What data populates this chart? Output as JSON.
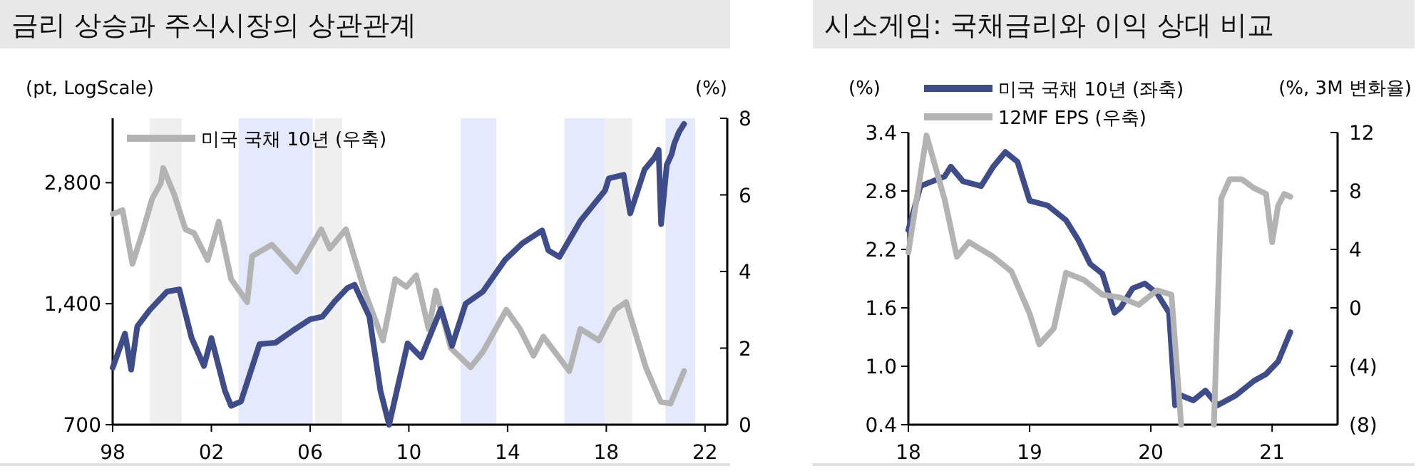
{
  "chart_data": [
    {
      "type": "line",
      "title": "금리 상승과 주식시장의 상관관계",
      "ylabel": "(pt, LogScale)",
      "y2label": "(%)",
      "log": "y",
      "legend": "top left",
      "xlim": [
        1998,
        2022.9
      ],
      "xticks": [
        {
          "value": 1998,
          "label": "98"
        },
        {
          "value": 2002,
          "label": "02"
        },
        {
          "value": 2006,
          "label": "06"
        },
        {
          "value": 2010,
          "label": "10"
        },
        {
          "value": 2014,
          "label": "14"
        },
        {
          "value": 2018,
          "label": "18"
        },
        {
          "value": 2022,
          "label": "22"
        }
      ],
      "ylim": [
        700,
        4050
      ],
      "yticks": [
        {
          "value": 700,
          "label": "700"
        },
        {
          "value": 1400,
          "label": "1,400"
        },
        {
          "value": 2800,
          "label": "2,800"
        }
      ],
      "y2lim": [
        0,
        8
      ],
      "y2ticks": [
        0,
        2,
        4,
        6,
        8
      ],
      "bands": [
        {
          "axis": "x",
          "from": 1999.5,
          "to": 2000.8,
          "color": "#efefef"
        },
        {
          "axis": "x",
          "from": 2003.1,
          "to": 2006.1,
          "color": "#e4e9fb"
        },
        {
          "axis": "x",
          "from": 2006.2,
          "to": 2007.3,
          "color": "#efefef"
        },
        {
          "axis": "x",
          "from": 2012.1,
          "to": 2013.55,
          "color": "#e4e9fb"
        },
        {
          "axis": "x",
          "from": 2016.3,
          "to": 2017.95,
          "color": "#e4e9fb"
        },
        {
          "axis": "x",
          "from": 2017.95,
          "to": 2019.05,
          "color": "#efefef"
        },
        {
          "axis": "x",
          "from": 2020.4,
          "to": 2021.6,
          "color": "#e4e9fb"
        }
      ],
      "series": [
        {
          "color": "#b3b3b3",
          "axis": "y2",
          "name": "미국 국채 10년 (우축)",
          "x": [
            1998,
            1998.4,
            1998.8,
            1999.2,
            1999.6,
            1999.95,
            2000.05,
            2000.5,
            2000.95,
            2001.3,
            2001.85,
            2002.3,
            2002.8,
            2003.45,
            2003.65,
            2004.45,
            2005.45,
            2006.45,
            2006.8,
            2007.45,
            2008.2,
            2008.95,
            2009.45,
            2009.9,
            2010.3,
            2010.8,
            2011.1,
            2011.7,
            2012.5,
            2013.0,
            2013.95,
            2014.5,
            2015.05,
            2015.45,
            2016.5,
            2016.95,
            2017.7,
            2018.35,
            2018.8,
            2019.6,
            2020.2,
            2020.6,
            2021.15
          ],
          "values": [
            5.5,
            5.6,
            4.2,
            5.0,
            5.9,
            6.3,
            6.7,
            6.0,
            5.1,
            5.0,
            4.3,
            5.3,
            3.8,
            3.2,
            4.4,
            4.7,
            4.0,
            5.1,
            4.6,
            5.1,
            3.5,
            2.2,
            3.8,
            3.6,
            3.9,
            2.5,
            3.5,
            2.0,
            1.5,
            1.9,
            3.0,
            2.5,
            1.8,
            2.3,
            1.4,
            2.5,
            2.2,
            3.0,
            3.2,
            1.5,
            0.6,
            0.55,
            1.4
          ]
        },
        {
          "color": "#3f4c8a",
          "x": [
            1998,
            1998.5,
            1998.75,
            1999.0,
            1999.5,
            2000.2,
            2000.7,
            2001.2,
            2001.7,
            2002.0,
            2002.55,
            2002.8,
            2003.2,
            2003.95,
            2004.6,
            2005.3,
            2006.0,
            2006.5,
            2007.0,
            2007.5,
            2007.8,
            2008.4,
            2008.85,
            2009.2,
            2009.95,
            2010.5,
            2011.3,
            2011.75,
            2012.3,
            2013.0,
            2013.9,
            2014.6,
            2015.4,
            2015.65,
            2016.1,
            2016.95,
            2017.95,
            2018.1,
            2018.7,
            2018.97,
            2019.55,
            2019.95,
            2020.12,
            2020.22,
            2020.45,
            2020.65,
            2020.75,
            2020.95,
            2021.15
          ],
          "values": [
            970,
            1180,
            960,
            1230,
            1350,
            1500,
            1520,
            1150,
            980,
            1150,
            850,
            780,
            800,
            1110,
            1120,
            1200,
            1280,
            1300,
            1420,
            1530,
            1560,
            1300,
            850,
            700,
            1115,
            1030,
            1360,
            1100,
            1400,
            1500,
            1800,
            1980,
            2130,
            1900,
            1830,
            2250,
            2680,
            2870,
            2930,
            2350,
            3020,
            3230,
            3380,
            2210,
            3100,
            3300,
            3500,
            3750,
            3920
          ]
        }
      ]
    },
    {
      "type": "line",
      "title": "시소게임: 국채금리와 이익 상대 비교",
      "ylabel": "(%)",
      "y2label": "(%, 3M 변화율)",
      "legend": "top",
      "xlim": [
        2018,
        2021.54
      ],
      "xticks": [
        {
          "value": 2018,
          "label": "18"
        },
        {
          "value": 2019,
          "label": "19"
        },
        {
          "value": 2020,
          "label": "20"
        },
        {
          "value": 2021,
          "label": "21"
        }
      ],
      "ylim": [
        0.4,
        3.4
      ],
      "yticks": [
        0.4,
        {
          "value": 1,
          "label": "1.0"
        },
        1.6,
        2.2,
        2.8,
        3.4
      ],
      "y2lim": [
        -8,
        12
      ],
      "y2ticks": [
        {
          "value": -8,
          "label": "(8)"
        },
        {
          "value": -4,
          "label": "(4)"
        },
        0,
        4,
        8,
        12
      ],
      "series": [
        {
          "name": "미국 국채 10년 (좌축)",
          "color": "#3f4c8a",
          "x": [
            2018,
            2018.1,
            2018.2,
            2018.3,
            2018.35,
            2018.45,
            2018.6,
            2018.7,
            2018.8,
            2018.9,
            2019.0,
            2019.15,
            2019.3,
            2019.4,
            2019.5,
            2019.6,
            2019.7,
            2019.75,
            2019.85,
            2019.95,
            2020.05,
            2020.15,
            2020.2,
            2020.25,
            2020.35,
            2020.45,
            2020.55,
            2020.7,
            2020.85,
            2020.95,
            2021.05,
            2021.15
          ],
          "values": [
            2.4,
            2.85,
            2.9,
            2.95,
            3.05,
            2.9,
            2.85,
            3.05,
            3.2,
            3.1,
            2.7,
            2.65,
            2.5,
            2.3,
            2.05,
            1.95,
            1.55,
            1.6,
            1.8,
            1.85,
            1.75,
            1.55,
            0.6,
            0.7,
            0.65,
            0.75,
            0.6,
            0.7,
            0.85,
            0.92,
            1.05,
            1.35
          ]
        },
        {
          "name": "12MF EPS (우축)",
          "color": "#b3b3b3",
          "axis": "y2",
          "x": [
            2018,
            2018.15,
            2018.3,
            2018.4,
            2018.5,
            2018.7,
            2018.85,
            2019.0,
            2019.08,
            2019.2,
            2019.3,
            2019.45,
            2019.6,
            2019.75,
            2019.9,
            2020.05,
            2020.17,
            2020.25,
            2020.38,
            2020.52,
            2020.58,
            2020.65,
            2020.75,
            2020.85,
            2020.95,
            2021.0,
            2021.05,
            2021.1,
            2021.15
          ],
          "values": [
            3.8,
            11.8,
            7.4,
            3.5,
            4.5,
            3.5,
            2.5,
            -0.4,
            -2.5,
            -1.4,
            2.4,
            1.9,
            0.9,
            0.7,
            0.2,
            1.2,
            0.9,
            -8,
            null,
            -8,
            7.5,
            8.8,
            8.8,
            8.2,
            7.8,
            4.5,
            7.0,
            7.8,
            7.6
          ]
        }
      ]
    }
  ]
}
